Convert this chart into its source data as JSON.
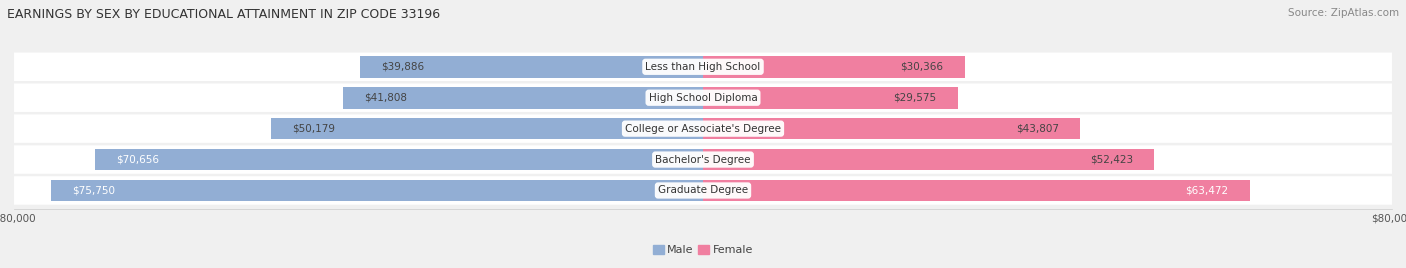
{
  "title": "EARNINGS BY SEX BY EDUCATIONAL ATTAINMENT IN ZIP CODE 33196",
  "source": "Source: ZipAtlas.com",
  "categories": [
    "Less than High School",
    "High School Diploma",
    "College or Associate's Degree",
    "Bachelor's Degree",
    "Graduate Degree"
  ],
  "male_values": [
    39886,
    41808,
    50179,
    70656,
    75750
  ],
  "female_values": [
    30366,
    29575,
    43807,
    52423,
    63472
  ],
  "male_color": "#92aed4",
  "female_color": "#f07fa0",
  "x_max": 80000,
  "background_color": "#f0f0f0",
  "row_color": "#ffffff",
  "title_fontsize": 9,
  "source_fontsize": 7.5,
  "label_fontsize": 7.5,
  "value_fontsize": 7.5,
  "tick_fontsize": 7.5,
  "legend_fontsize": 8
}
